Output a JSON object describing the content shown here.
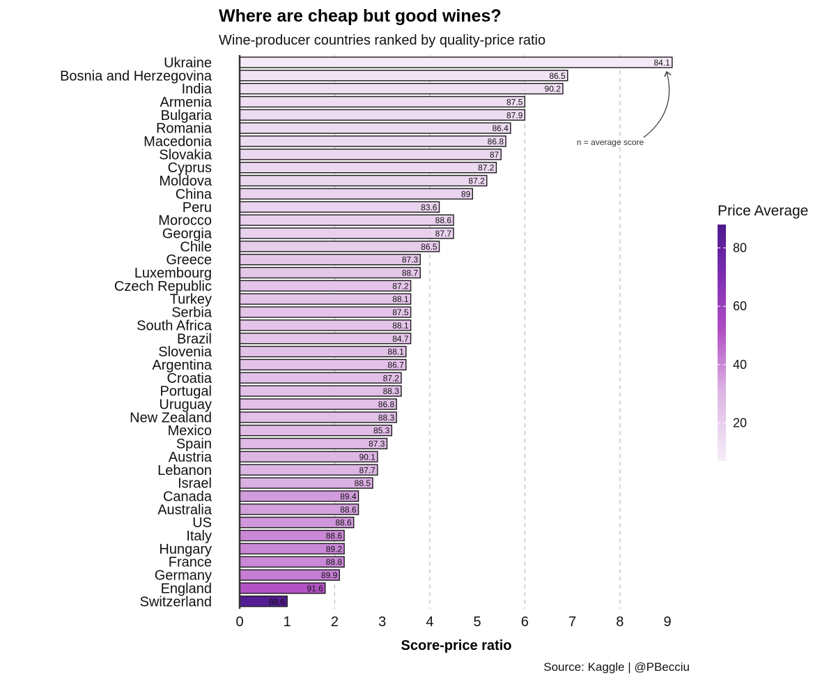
{
  "title": "Where are cheap but good wines?",
  "subtitle": "Wine-producer countries ranked by quality-price ratio",
  "caption": "Source: Kaggle | @PBecciu",
  "annotation": "n = average score",
  "chart_data": {
    "type": "bar",
    "orientation": "horizontal",
    "title": "Where are cheap but good wines?",
    "subtitle": "Wine-producer countries ranked by quality-price ratio",
    "xlabel": "Score-price ratio",
    "ylabel": "",
    "xlim": [
      0,
      9
    ],
    "xticks": [
      "0",
      "1",
      "2",
      "3",
      "4",
      "5",
      "6",
      "7",
      "8",
      "9"
    ],
    "grid": "vertical dashed at 2, 4, 6, 8",
    "categories": [
      "Ukraine",
      "Bosnia and Herzegovina",
      "India",
      "Armenia",
      "Bulgaria",
      "Romania",
      "Macedonia",
      "Slovakia",
      "Cyprus",
      "Moldova",
      "China",
      "Peru",
      "Morocco",
      "Georgia",
      "Chile",
      "Greece",
      "Luxembourg",
      "Czech Republic",
      "Turkey",
      "Serbia",
      "South Africa",
      "Brazil",
      "Slovenia",
      "Argentina",
      "Croatia",
      "Portugal",
      "Uruguay",
      "New Zealand",
      "Mexico",
      "Spain",
      "Austria",
      "Lebanon",
      "Israel",
      "Canada",
      "Australia",
      "US",
      "Italy",
      "Hungary",
      "France",
      "Germany",
      "England",
      "Switzerland"
    ],
    "values": [
      9.1,
      6.9,
      6.8,
      6.0,
      6.0,
      5.7,
      5.6,
      5.5,
      5.4,
      5.2,
      4.9,
      4.2,
      4.5,
      4.5,
      4.2,
      3.8,
      3.8,
      3.6,
      3.6,
      3.6,
      3.6,
      3.6,
      3.5,
      3.5,
      3.4,
      3.4,
      3.3,
      3.3,
      3.2,
      3.1,
      2.9,
      2.9,
      2.8,
      2.5,
      2.5,
      2.4,
      2.2,
      2.2,
      2.2,
      2.1,
      1.8,
      1.0
    ],
    "data_labels": [
      "84.1",
      "86.5",
      "90.2",
      "87.5",
      "87.9",
      "86.4",
      "86.8",
      "87",
      "87.2",
      "87.2",
      "89",
      "83.6",
      "88.6",
      "87.7",
      "86.5",
      "87.3",
      "88.7",
      "87.2",
      "88.1",
      "87.5",
      "88.1",
      "84.7",
      "88.1",
      "86.7",
      "87.2",
      "88.3",
      "86.8",
      "88.3",
      "85.3",
      "87.3",
      "90.1",
      "87.7",
      "88.5",
      "89.4",
      "88.6",
      "88.6",
      "88.6",
      "89.2",
      "88.8",
      "89.9",
      "91.6",
      "88.6"
    ],
    "price_average": [
      9,
      12,
      13,
      14,
      15,
      15,
      15,
      16,
      16,
      17,
      18,
      18,
      19,
      19,
      21,
      23,
      23,
      24,
      24,
      24,
      24,
      24,
      25,
      25,
      26,
      26,
      26,
      26,
      27,
      28,
      30,
      30,
      32,
      36,
      35,
      37,
      40,
      40,
      40,
      42,
      51,
      85
    ],
    "legend": {
      "title": "Price Average",
      "placement": "right",
      "ticks": [
        "80",
        "60",
        "40",
        "20"
      ],
      "range": [
        7,
        88
      ],
      "color_low": "#f6eef8",
      "color_high": "#4d1a8c"
    }
  }
}
